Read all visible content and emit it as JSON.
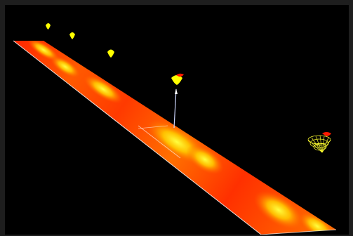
{
  "scene": {
    "background_color": "#000000",
    "frame_color": "#1e1e1e",
    "colors": {
      "hot": "#ff2000",
      "mid": "#ff8a00",
      "bright": "#ffff00",
      "edge": "#ffffff",
      "marker_tip": "#ff0000",
      "axis_line": "#cfd8ff"
    },
    "objects": [
      {
        "name": "heat-strip",
        "kind": "surface",
        "icon": "gradient-band"
      },
      {
        "name": "probe-marker",
        "kind": "marker",
        "icon": "teardrop-marker",
        "count": 5
      },
      {
        "name": "probe-stem",
        "kind": "line",
        "icon": "vertical-axis"
      },
      {
        "name": "wireframe-cone",
        "kind": "mesh",
        "icon": "wire-cone"
      }
    ]
  }
}
